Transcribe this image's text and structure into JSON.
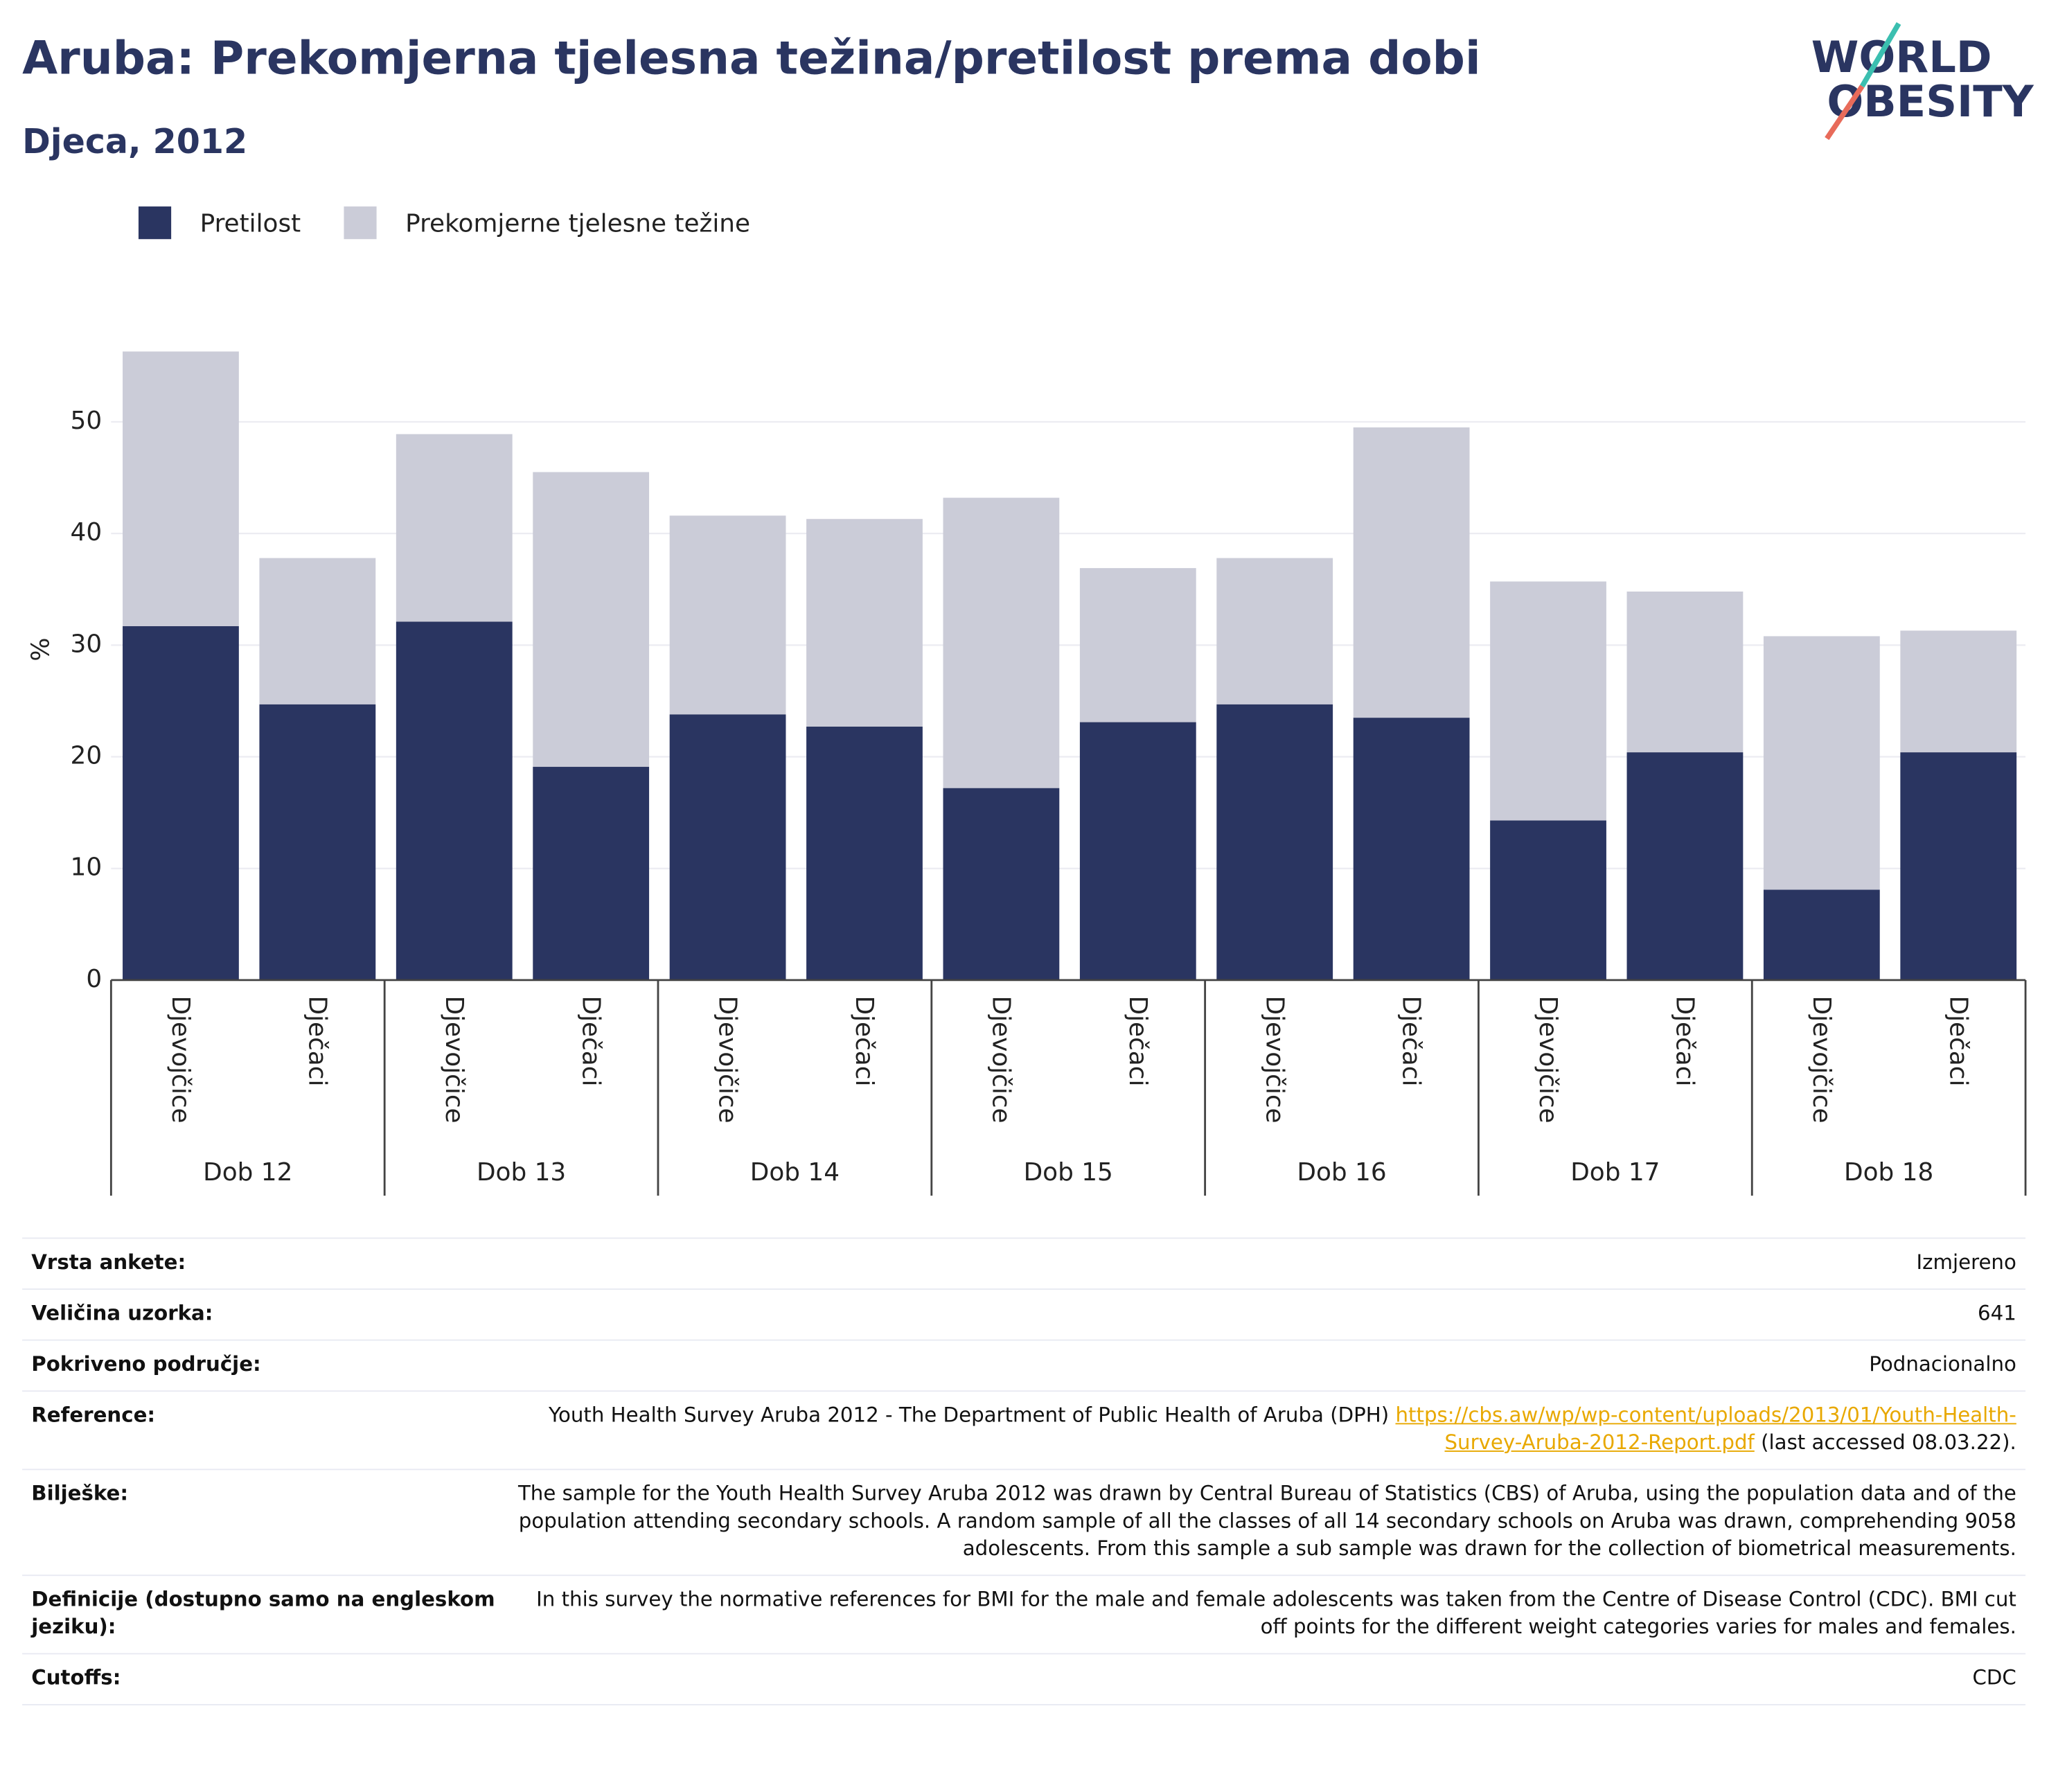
{
  "chart_data": {
    "type": "stacked_bar",
    "title": "Aruba: Prekomjerna tjelesna težina/pretilost prema dobi",
    "subtitle": "Djeca, 2012",
    "logo": [
      "WORLD",
      "OBESITY"
    ],
    "y_label": "%",
    "categories": [
      "Djevojčice",
      "Dječaci",
      "Djevojčice",
      "Dječaci",
      "Djevojčice",
      "Dječaci",
      "Djevojčice",
      "Dječaci",
      "Djevojčice",
      "Dječaci",
      "Djevojčice",
      "Dječaci",
      "Djevojčice",
      "Dječaci"
    ],
    "groups": [
      "Dob 12",
      "Dob 13",
      "Dob 14",
      "Dob 15",
      "Dob 16",
      "Dob 17",
      "Dob 18"
    ],
    "series": [
      {
        "name": "Pretilost",
        "color": "#2a3561",
        "values": [
          31.7,
          24.7,
          32.1,
          19.1,
          23.8,
          22.7,
          17.2,
          23.1,
          24.7,
          23.5,
          14.3,
          20.4,
          8.1,
          20.4
        ]
      },
      {
        "name": "Prekomjerne tjelesne težine",
        "color": "#cbccd8",
        "values": [
          24.6,
          13.1,
          16.8,
          26.4,
          17.8,
          18.6,
          26.0,
          13.8,
          13.1,
          26.0,
          21.4,
          14.4,
          22.7,
          10.9
        ]
      }
    ],
    "ylim": [
      0,
      57
    ],
    "yticks": [
      0,
      10,
      20,
      30,
      40,
      50
    ],
    "grid": true
  },
  "info": [
    {
      "label": "Vrsta ankete:",
      "value": [
        "Izmjereno"
      ]
    },
    {
      "label": "Veličina uzorka:",
      "value": [
        "641"
      ]
    },
    {
      "label": "Pokriveno područje:",
      "value": [
        "Podnacionalno"
      ]
    },
    {
      "label": "Reference:",
      "value": [
        "Youth Health Survey Aruba 2012 - The Department of Public Health of Aruba (DPH)",
        "https://cbs.aw/wp/wp-content/uploads/2013/01/Youth-Health-Survey-Aruba-2012-Report.pdf",
        "(last accessed 08.03.22)."
      ]
    },
    {
      "label": "Bilješke:",
      "value": [
        "The sample for the Youth Health Survey Aruba 2012 was drawn by Central Bureau of Statistics (CBS) of Aruba, using the population data and of the population attending secondary schools. A random sample of all the classes of all 14 secondary schools on Aruba was drawn, comprehending 9058 adolescents. From this sample a sub sample was drawn for the collection of biometrical measurements."
      ]
    },
    {
      "label": "Definicije (dostupno samo na engleskom jeziku):",
      "value": [
        "In this survey the normative references for BMI for the male and female adolescents was taken from the Centre of Disease Control (CDC). BMI cut off points for the different weight categories varies for males and females."
      ]
    },
    {
      "label": "Cutoffs:",
      "value": [
        "CDC"
      ]
    }
  ]
}
